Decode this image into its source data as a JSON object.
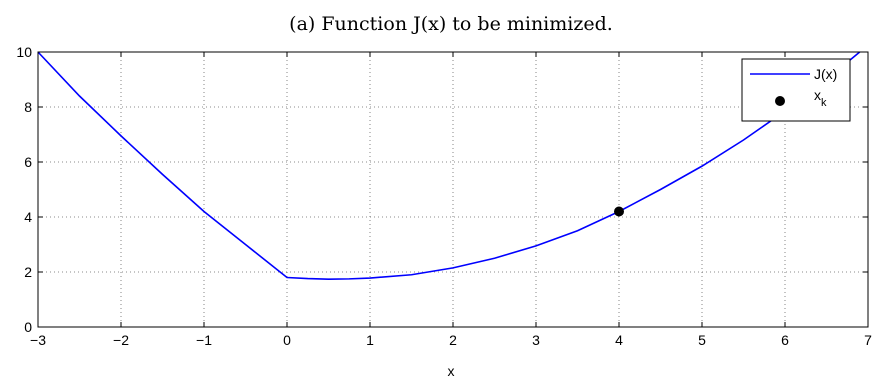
{
  "chart_data": {
    "type": "line",
    "title": "(a) Function J(x) to be minimized.",
    "xlabel": "x",
    "ylabel": "",
    "xlim": [
      -3,
      7
    ],
    "ylim": [
      0,
      10
    ],
    "xticks": [
      -3,
      -2,
      -1,
      0,
      1,
      2,
      3,
      4,
      5,
      6,
      7
    ],
    "yticks": [
      0,
      2,
      4,
      6,
      8,
      10
    ],
    "grid": true,
    "legend_position": "top-right",
    "series": [
      {
        "name": "J(x)",
        "kind": "line",
        "color": "#0000ff",
        "x": [
          -3,
          -2.5,
          -2,
          -1.5,
          -1,
          -0.5,
          0,
          0.25,
          0.5,
          0.75,
          1,
          1.5,
          2,
          2.5,
          3,
          3.5,
          4,
          4.5,
          5,
          5.5,
          6,
          6.5,
          6.9
        ],
        "y": [
          10.0,
          8.4,
          6.95,
          5.55,
          4.2,
          3.0,
          1.8,
          1.76,
          1.74,
          1.75,
          1.78,
          1.9,
          2.15,
          2.5,
          2.95,
          3.5,
          4.2,
          5.0,
          5.85,
          6.8,
          7.85,
          9.0,
          10.0
        ]
      },
      {
        "name": "x_k",
        "kind": "scatter",
        "color": "#000000",
        "x": [
          4
        ],
        "y": [
          4.2
        ]
      }
    ]
  }
}
